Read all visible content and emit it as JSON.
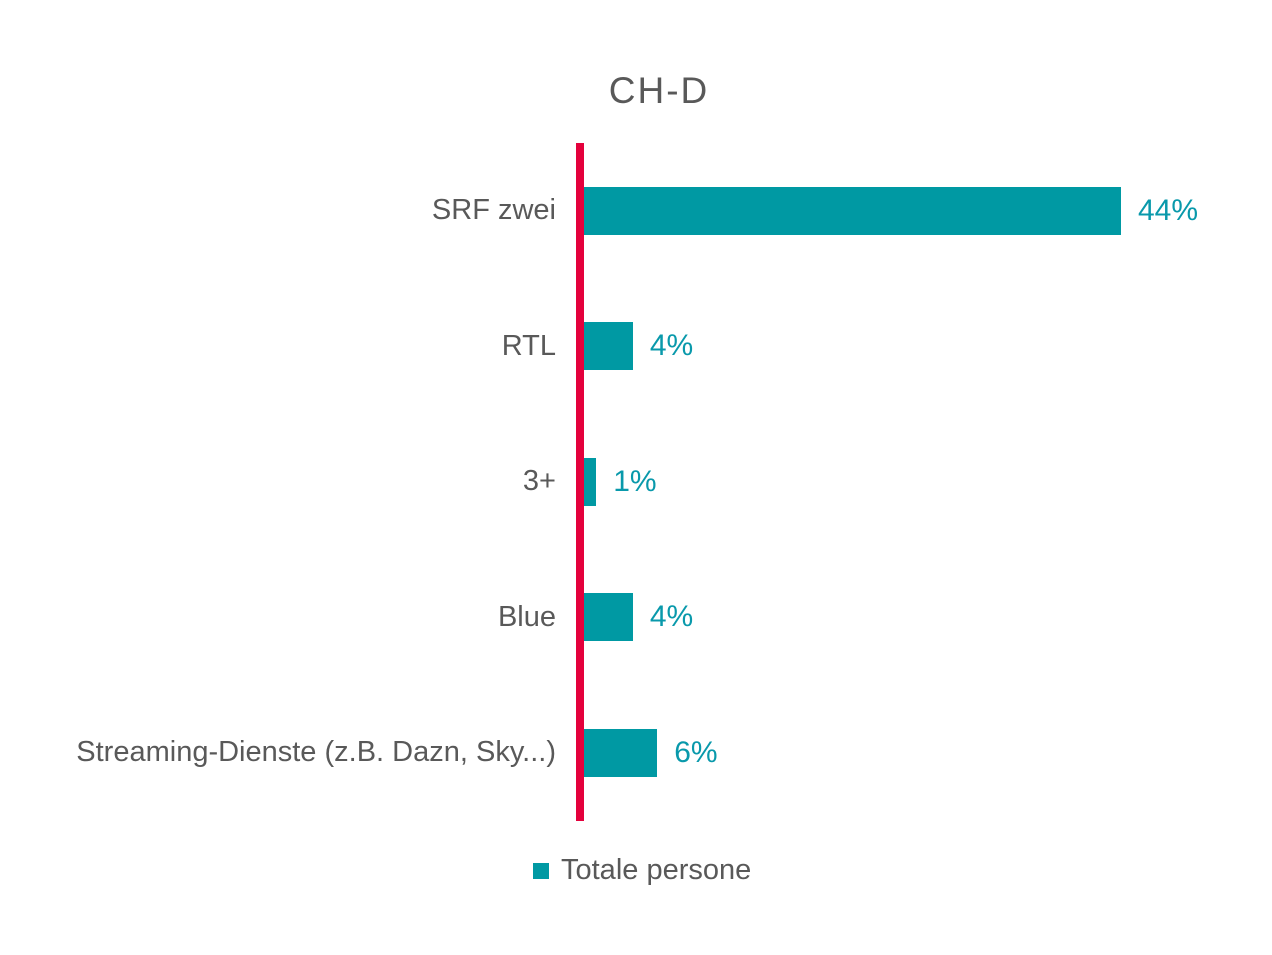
{
  "chart_data": {
    "type": "bar",
    "orientation": "horizontal",
    "title": "CH-D",
    "categories": [
      "SRF zwei",
      "RTL",
      "3+",
      "Blue",
      "Streaming-Dienste (z.B. Dazn, Sky...)"
    ],
    "values": [
      44,
      4,
      1,
      4,
      6
    ],
    "value_labels": [
      "44%",
      "4%",
      "1%",
      "4%",
      "6%"
    ],
    "unit": "%",
    "xlim": [
      0,
      44
    ],
    "grid": false,
    "axis_baseline": "left-vertical",
    "legend": {
      "label": "Totale persone",
      "position": "bottom"
    },
    "colors": {
      "bar": "#0099a3",
      "value_text": "#0999ab",
      "label_text": "#595959",
      "title_text": "#595959",
      "axis_line": "#e4003c",
      "background": "#ffffff"
    }
  }
}
